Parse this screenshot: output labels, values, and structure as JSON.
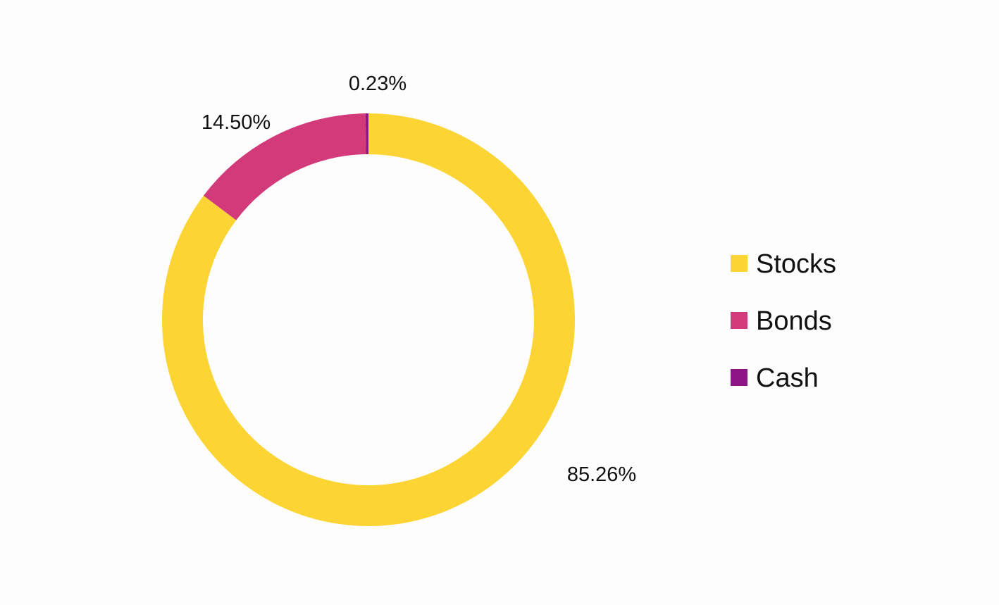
{
  "chart_data": {
    "type": "pie",
    "variant": "donut",
    "title": "",
    "categories": [
      "Stocks",
      "Bonds",
      "Cash"
    ],
    "values": [
      85.26,
      14.5,
      0.23
    ],
    "data_labels": [
      "85.26%",
      "14.50%",
      "0.23%"
    ],
    "colors": [
      "#fcd535",
      "#d33a7a",
      "#8d1585"
    ],
    "legend": {
      "placement": "right",
      "entries": [
        "Stocks",
        "Bonds",
        "Cash"
      ]
    }
  }
}
